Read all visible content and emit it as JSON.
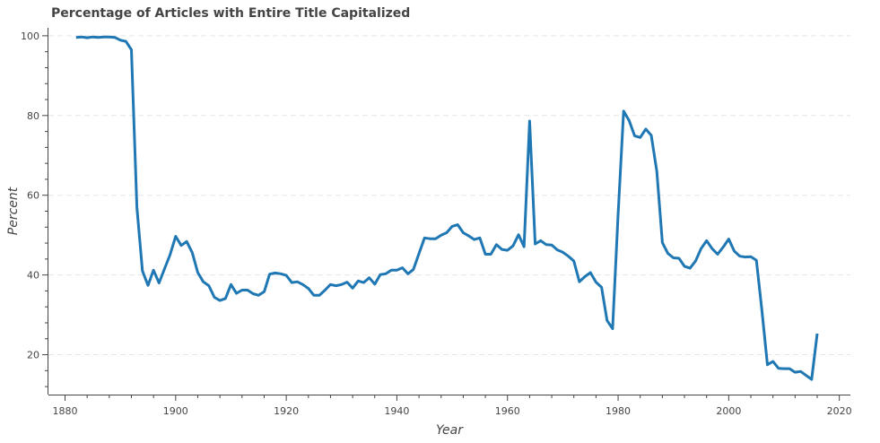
{
  "chart_data": {
    "type": "line",
    "title": "Percentage of Articles with Entire Title Capitalized",
    "xlabel": "Year",
    "ylabel": "Percent",
    "xlim": [
      1877,
      2022
    ],
    "ylim": [
      10,
      102
    ],
    "x_ticks": [
      1880,
      1900,
      1920,
      1940,
      1960,
      1980,
      2000,
      2020
    ],
    "y_ticks": [
      20,
      40,
      60,
      80,
      100
    ],
    "grid": "horizontal-dashed",
    "legend": "none",
    "line_color": "#1f77b4",
    "series": [
      {
        "x": [
          1882,
          1883,
          1884,
          1885,
          1886,
          1887,
          1888,
          1889,
          1890,
          1891,
          1892,
          1893,
          1894,
          1895,
          1896,
          1897,
          1898,
          1899,
          1900,
          1901,
          1902,
          1903,
          1904,
          1905,
          1906,
          1907,
          1908,
          1909,
          1910,
          1911,
          1912,
          1913,
          1914,
          1915,
          1916,
          1917,
          1918,
          1919,
          1920,
          1921,
          1922,
          1923,
          1924,
          1925,
          1926,
          1927,
          1928,
          1929,
          1930,
          1931,
          1932,
          1933,
          1934,
          1935,
          1936,
          1937,
          1938,
          1939,
          1940,
          1941,
          1942,
          1943,
          1944,
          1945,
          1946,
          1947,
          1948,
          1949,
          1950,
          1951,
          1952,
          1953,
          1954,
          1955,
          1956,
          1957,
          1958,
          1959,
          1960,
          1961,
          1962,
          1963,
          1964,
          1965,
          1966,
          1967,
          1968,
          1969,
          1970,
          1971,
          1972,
          1973,
          1974,
          1975,
          1976,
          1977,
          1978,
          1979,
          1980,
          1981,
          1982,
          1983,
          1984,
          1985,
          1986,
          1987,
          1988,
          1989,
          1990,
          1991,
          1992,
          1993,
          1994,
          1995,
          1996,
          1997,
          1998,
          1999,
          2000,
          2001,
          2002,
          2003,
          2004,
          2005,
          2006,
          2007,
          2008,
          2009,
          2010,
          2011,
          2012,
          2013,
          2014,
          2015,
          2016
        ],
        "values": [
          99.6,
          99.7,
          99.5,
          99.7,
          99.6,
          99.7,
          99.7,
          99.6,
          98.9,
          98.6,
          96.5,
          57.0,
          41.0,
          37.4,
          41.2,
          38.0,
          41.6,
          45.1,
          49.7,
          47.4,
          48.4,
          45.6,
          40.6,
          38.3,
          37.3,
          34.4,
          33.6,
          34.1,
          37.6,
          35.4,
          36.2,
          36.2,
          35.3,
          34.9,
          35.8,
          40.2,
          40.5,
          40.3,
          39.9,
          38.1,
          38.3,
          37.6,
          36.6,
          34.9,
          34.9,
          36.2,
          37.6,
          37.3,
          37.6,
          38.2,
          36.7,
          38.5,
          38.1,
          39.3,
          37.7,
          40.1,
          40.3,
          41.2,
          41.2,
          41.8,
          40.3,
          41.4,
          45.4,
          49.3,
          49.1,
          49.1,
          50.0,
          50.6,
          52.2,
          52.6,
          50.6,
          49.8,
          48.9,
          49.3,
          45.2,
          45.2,
          47.6,
          46.4,
          46.2,
          47.3,
          50.1,
          47.1,
          78.6,
          47.8,
          48.6,
          47.6,
          47.5,
          46.3,
          45.7,
          44.7,
          43.5,
          38.3,
          39.6,
          40.6,
          38.2,
          36.9,
          28.6,
          26.5,
          55.0,
          81.1,
          78.7,
          74.9,
          74.5,
          76.6,
          75.0,
          66.0,
          48.1,
          45.4,
          44.3,
          44.2,
          42.2,
          41.7,
          43.5,
          46.6,
          48.6,
          46.6,
          45.2,
          47.0,
          49.0,
          46.0,
          44.7,
          44.5,
          44.6,
          43.7,
          31.0,
          17.5,
          18.3,
          16.6,
          16.5,
          16.5,
          15.6,
          15.8,
          14.8,
          13.8,
          25.3
        ]
      }
    ]
  }
}
